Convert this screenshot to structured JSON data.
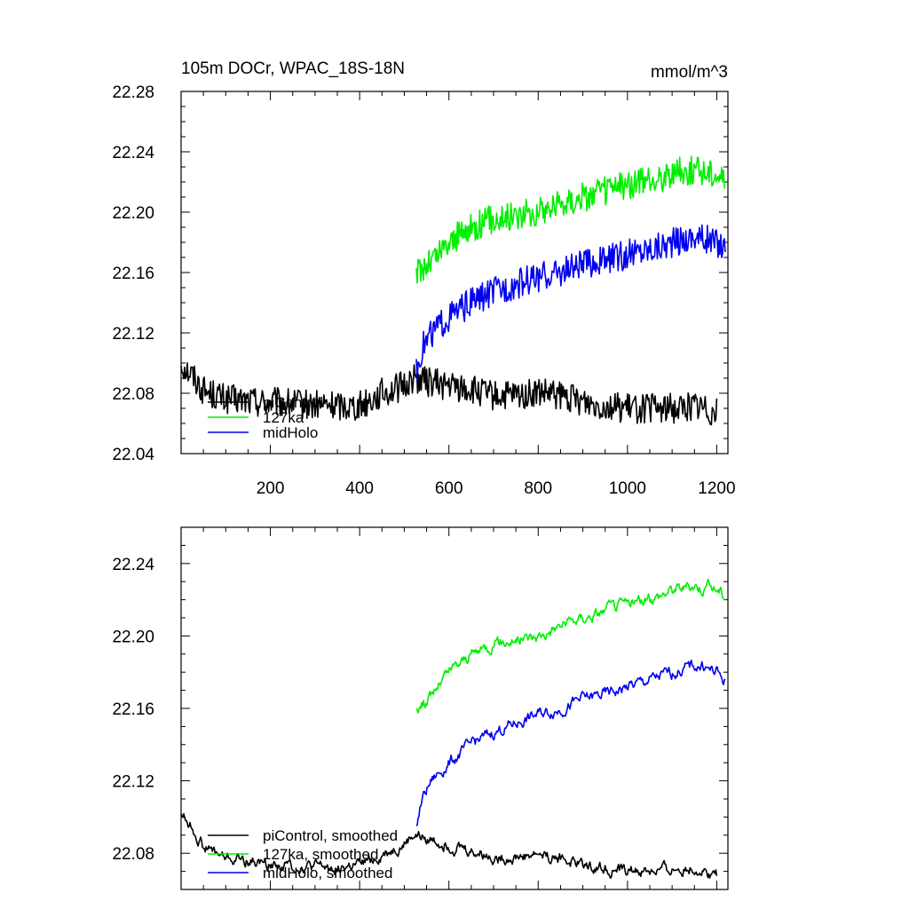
{
  "figure": {
    "title_left": "105m DOCr, WPAC_18S-18N",
    "title_right": "mmol/m^3"
  },
  "chart_data": [
    {
      "type": "line",
      "title": "105m DOCr, WPAC_18S-18N",
      "units": "mmol/m^3",
      "xlim": [
        0,
        1225
      ],
      "ylim": [
        22.04,
        22.28
      ],
      "x_ticks": [
        200,
        400,
        600,
        800,
        1000,
        1200
      ],
      "x_tick_labels": [
        "200",
        "400",
        "600",
        "800",
        "1000",
        "1200"
      ],
      "y_ticks": [
        22.04,
        22.08,
        22.12,
        22.16,
        22.2,
        22.24,
        22.28
      ],
      "y_tick_labels": [
        "22.04",
        "22.08",
        "22.12",
        "22.16",
        "22.20",
        "22.24",
        "22.28"
      ],
      "legend_placement": "lower-left",
      "series": [
        {
          "name": "piControl",
          "color": "#000000",
          "x": [
            0,
            25,
            50,
            100,
            150,
            200,
            250,
            300,
            350,
            400,
            450,
            500,
            520,
            550,
            600,
            650,
            700,
            750,
            800,
            850,
            900,
            950,
            1000,
            1050,
            1100,
            1150,
            1200
          ],
          "y": [
            22.1,
            22.092,
            22.082,
            22.076,
            22.075,
            22.074,
            22.073,
            22.072,
            22.072,
            22.072,
            22.08,
            22.085,
            22.09,
            22.088,
            22.085,
            22.082,
            22.078,
            22.078,
            22.08,
            22.078,
            22.075,
            22.072,
            22.07,
            22.07,
            22.07,
            22.072,
            22.068
          ]
        },
        {
          "name": "127ka",
          "color": "#00ee00",
          "x": [
            527,
            550,
            575,
            600,
            650,
            700,
            750,
            800,
            850,
            900,
            950,
            1000,
            1050,
            1100,
            1150,
            1200,
            1220
          ],
          "y": [
            22.16,
            22.165,
            22.172,
            22.18,
            22.19,
            22.196,
            22.198,
            22.2,
            22.206,
            22.21,
            22.214,
            22.218,
            22.22,
            22.226,
            22.228,
            22.226,
            22.222
          ]
        },
        {
          "name": "midHolo",
          "color": "#0000ee",
          "x": [
            527,
            540,
            560,
            600,
            650,
            700,
            750,
            800,
            850,
            900,
            950,
            1000,
            1050,
            1100,
            1150,
            1200,
            1220
          ],
          "y": [
            22.095,
            22.11,
            22.12,
            22.13,
            22.14,
            22.147,
            22.152,
            22.157,
            22.16,
            22.165,
            22.168,
            22.172,
            22.176,
            22.18,
            22.184,
            22.18,
            22.176
          ]
        }
      ]
    },
    {
      "type": "line",
      "xlim": [
        0,
        1225
      ],
      "ylim": [
        22.06,
        22.26
      ],
      "y_ticks": [
        22.08,
        22.12,
        22.16,
        22.2,
        22.24
      ],
      "y_tick_labels": [
        "22.08",
        "22.12",
        "22.16",
        "22.20",
        "22.24"
      ],
      "legend_placement": "lower-left",
      "series": [
        {
          "name": "piControl, smoothed",
          "color": "#000000",
          "x": [
            0,
            25,
            50,
            100,
            150,
            200,
            250,
            300,
            350,
            400,
            450,
            500,
            520,
            550,
            600,
            650,
            700,
            750,
            800,
            850,
            900,
            950,
            1000,
            1050,
            1100,
            1150,
            1200
          ],
          "y": [
            22.103,
            22.094,
            22.084,
            22.077,
            22.076,
            22.074,
            22.073,
            22.072,
            22.072,
            22.073,
            22.079,
            22.085,
            22.09,
            22.088,
            22.085,
            22.081,
            22.078,
            22.078,
            22.08,
            22.077,
            22.074,
            22.072,
            22.07,
            22.07,
            22.071,
            22.072,
            22.068
          ]
        },
        {
          "name": "127ka, smoothed",
          "color": "#00ee00",
          "x": [
            527,
            550,
            575,
            600,
            650,
            700,
            750,
            800,
            850,
            900,
            950,
            1000,
            1050,
            1100,
            1150,
            1200,
            1220
          ],
          "y": [
            22.16,
            22.164,
            22.172,
            22.18,
            22.19,
            22.196,
            22.198,
            22.2,
            22.206,
            22.21,
            22.214,
            22.218,
            22.22,
            22.226,
            22.228,
            22.226,
            22.222
          ]
        },
        {
          "name": "midHolo, smoothed",
          "color": "#0000ee",
          "x": [
            527,
            540,
            560,
            600,
            650,
            700,
            750,
            800,
            850,
            900,
            950,
            1000,
            1050,
            1100,
            1150,
            1200,
            1220
          ],
          "y": [
            22.094,
            22.11,
            22.12,
            22.13,
            22.14,
            22.147,
            22.152,
            22.157,
            22.16,
            22.165,
            22.168,
            22.172,
            22.176,
            22.18,
            22.184,
            22.18,
            22.175
          ]
        }
      ]
    }
  ]
}
